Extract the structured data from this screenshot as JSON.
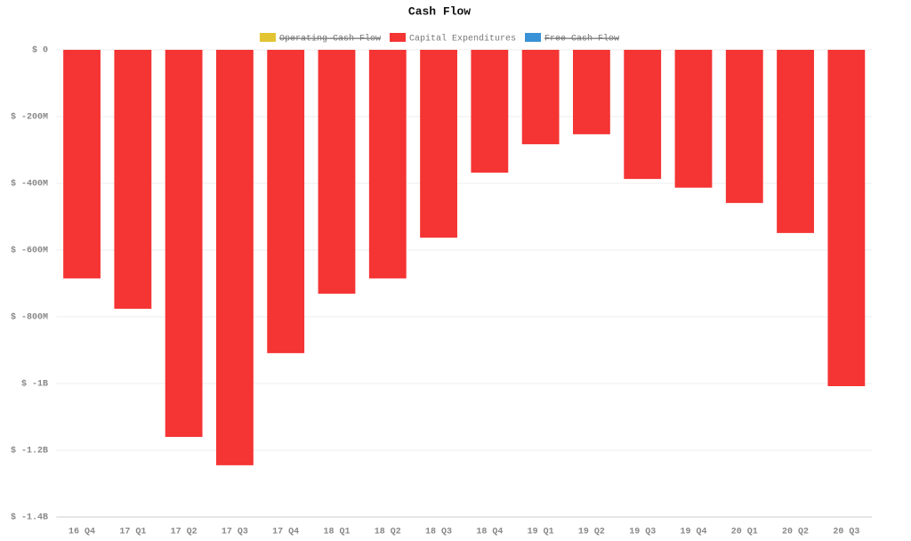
{
  "chart_data": {
    "type": "bar",
    "title": "Cash Flow",
    "categories": [
      "16 Q4",
      "17 Q1",
      "17 Q2",
      "17 Q3",
      "17 Q4",
      "18 Q1",
      "18 Q2",
      "18 Q3",
      "18 Q4",
      "19 Q1",
      "19 Q2",
      "19 Q3",
      "19 Q4",
      "20 Q1",
      "20 Q2",
      "20 Q3"
    ],
    "series": [
      {
        "name": "Operating Cash Flow",
        "color": "#e3c433",
        "hidden": true
      },
      {
        "name": "Capital Expenditures",
        "color": "#f53434",
        "values": [
          -685000000,
          -776000000,
          -1160000000,
          -1245000000,
          -909000000,
          -731000000,
          -685000000,
          -563000000,
          -368000000,
          -283000000,
          -253000000,
          -387000000,
          -413000000,
          -459000000,
          -549000000,
          -1008000000
        ]
      },
      {
        "name": "Free Cash Flow",
        "color": "#3a92d6",
        "hidden": true
      }
    ],
    "ylim": [
      -1400000000,
      0
    ],
    "yticks": [
      {
        "value": 0,
        "label": "$ 0"
      },
      {
        "value": -200000000,
        "label": "$ -200M"
      },
      {
        "value": -400000000,
        "label": "$ -400M"
      },
      {
        "value": -600000000,
        "label": "$ -600M"
      },
      {
        "value": -800000000,
        "label": "$ -800M"
      },
      {
        "value": -1000000000,
        "label": "$ -1B"
      },
      {
        "value": -1200000000,
        "label": "$ -1.2B"
      },
      {
        "value": -1400000000,
        "label": "$ -1.4B"
      }
    ],
    "grid": true,
    "legend": "top"
  }
}
